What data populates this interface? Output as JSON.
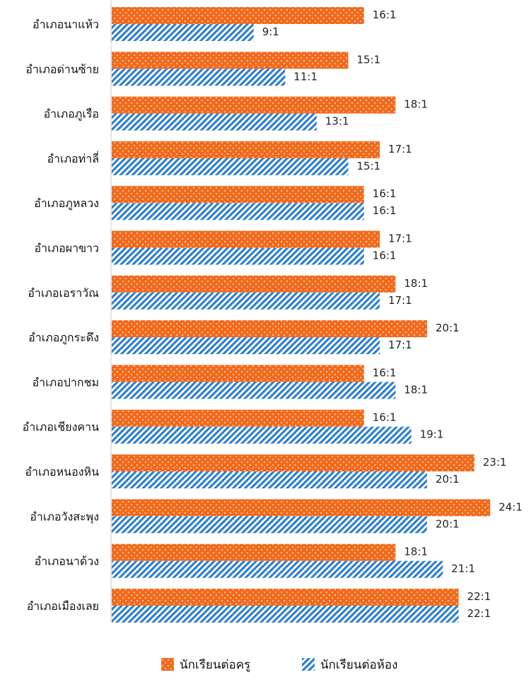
{
  "chart_data": {
    "type": "bar",
    "orientation": "horizontal",
    "categories": [
      "อำเภอนาแห้ว",
      "อำเภอด่านซ้าย",
      "อำเภอภูเรือ",
      "อำเภอท่าลี่",
      "อำเภอภูหลวง",
      "อำเภอผาขาว",
      "อำเภอเอราวัณ",
      "อำเภอภูกระดึง",
      "อำเภอปากชม",
      "อำเภอเชียงคาน",
      "อำเภอหนองหิน",
      "อำเภอวังสะพุง",
      "อำเภอนาด้วง",
      "อำเภอเมืองเลย"
    ],
    "series": [
      {
        "name": "นักเรียนต่อครู",
        "values": [
          16,
          15,
          18,
          17,
          16,
          17,
          18,
          20,
          16,
          16,
          23,
          24,
          18,
          22
        ],
        "labels": [
          "16:1",
          "15:1",
          "18:1",
          "17:1",
          "16:1",
          "17:1",
          "18:1",
          "20:1",
          "16:1",
          "16:1",
          "23:1",
          "24:1",
          "18:1",
          "22:1"
        ],
        "color": "#f26a1b",
        "pattern": "dots"
      },
      {
        "name": "นักเรียนต่อห้อง",
        "values": [
          9,
          11,
          13,
          15,
          16,
          16,
          17,
          17,
          18,
          19,
          20,
          20,
          21,
          22
        ],
        "labels": [
          "9:1",
          "11:1",
          "13:1",
          "15:1",
          "16:1",
          "16:1",
          "17:1",
          "17:1",
          "18:1",
          "19:1",
          "20:1",
          "20:1",
          "21:1",
          "22:1"
        ],
        "color": "#2f7fd1",
        "pattern": "diagonal-stripes"
      }
    ],
    "xlim": [
      0,
      24
    ],
    "grid": false,
    "legend": "bottom"
  }
}
